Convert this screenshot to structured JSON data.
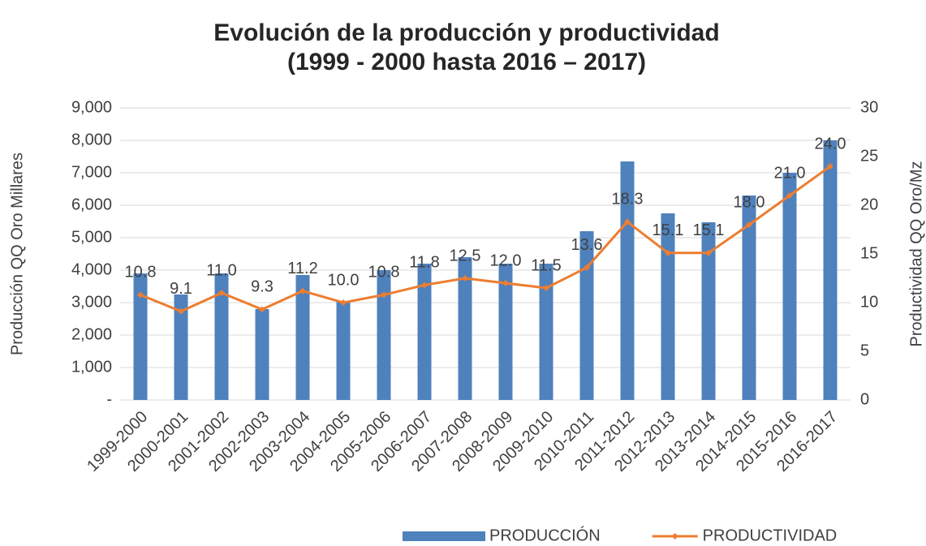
{
  "chart_data": {
    "type": "bar-line",
    "title": "Evolución de la producción y productividad",
    "subtitle": "(1999 - 2000 hasta 2016 – 2017)",
    "y_label": "Producción QQ Oro Millares",
    "y2_label": "Productividad QQ Oro/Mz",
    "categories": [
      "1999-2000",
      "2000-2001",
      "2001-2002",
      "2002-2003",
      "2003-2004",
      "2004-2005",
      "2005-2006",
      "2006-2007",
      "2007-2008",
      "2008-2009",
      "2009-2010",
      "2010-2011",
      "2011-2012",
      "2012-2013",
      "2013-2014",
      "2014-2015",
      "2015-2016",
      "2016-2017"
    ],
    "series": [
      {
        "name": "PRODUCCIÓN",
        "type": "bar",
        "color": "#4f81bd",
        "values": [
          3900,
          3250,
          3900,
          2800,
          3850,
          3050,
          4000,
          4200,
          4400,
          4200,
          4200,
          5200,
          7350,
          5750,
          5475,
          6300,
          7000,
          8000
        ]
      },
      {
        "name": "PRODUCTIVIDAD",
        "type": "line",
        "axis": "y2",
        "color": "#ed7d31",
        "values": [
          10.8,
          9.1,
          11.0,
          9.3,
          11.2,
          10.0,
          10.8,
          11.8,
          12.5,
          12.0,
          11.5,
          13.6,
          18.3,
          15.1,
          15.1,
          18.0,
          21.0,
          24.0
        ],
        "value_labels": [
          "10.8",
          "9.1",
          "11.0",
          "9.3",
          "11.2",
          "10.0",
          "10.8",
          "11.8",
          "12.5",
          "12.0",
          "11.5",
          "13.6",
          "18.3",
          "15.1",
          "15.1",
          "18.0",
          "21.0",
          "24.0"
        ]
      }
    ],
    "ylim": [
      0,
      9000
    ],
    "yticks": [
      {
        "value": 0,
        "label": "-"
      },
      {
        "value": 1000,
        "label": "1,000"
      },
      {
        "value": 2000,
        "label": "2,000"
      },
      {
        "value": 3000,
        "label": "3,000"
      },
      {
        "value": 4000,
        "label": "4,000"
      },
      {
        "value": 5000,
        "label": "5,000"
      },
      {
        "value": 6000,
        "label": "6,000"
      },
      {
        "value": 7000,
        "label": "7,000"
      },
      {
        "value": 8000,
        "label": "8,000"
      },
      {
        "value": 9000,
        "label": "9,000"
      }
    ],
    "y2lim": [
      0,
      30
    ],
    "y2ticks": [
      0,
      5,
      10,
      15,
      20,
      25,
      30
    ],
    "grid": true,
    "legend": "bottom"
  }
}
